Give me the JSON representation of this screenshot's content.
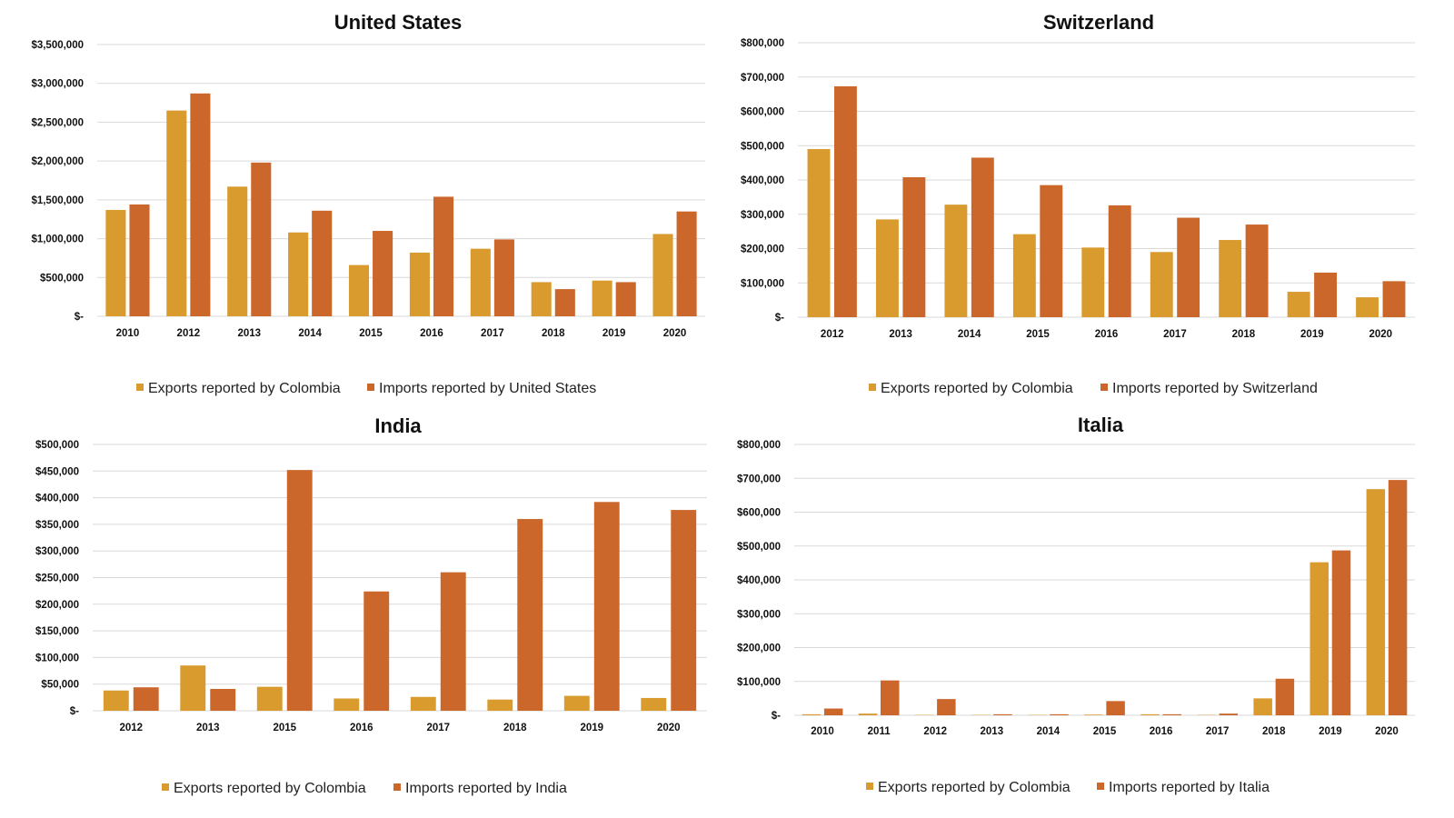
{
  "colors": {
    "exports": "#D99A2E",
    "imports": "#CC672C"
  },
  "chart_data": [
    {
      "type": "bar",
      "title": "United States",
      "categories": [
        "2010",
        "2012",
        "2013",
        "2014",
        "2015",
        "2016",
        "2017",
        "2018",
        "2019",
        "2020"
      ],
      "series": [
        {
          "name": "Exports reported by Colombia",
          "values": [
            1370000,
            2650000,
            1670000,
            1080000,
            660000,
            820000,
            870000,
            440000,
            460000,
            1060000
          ]
        },
        {
          "name": "Imports reported by United States",
          "values": [
            1440000,
            2870000,
            1980000,
            1360000,
            1100000,
            1540000,
            990000,
            350000,
            440000,
            1350000
          ]
        }
      ],
      "ylim": [
        0,
        3500000
      ],
      "yticks": [
        0,
        500000,
        1000000,
        1500000,
        2000000,
        2500000,
        3000000,
        3500000
      ],
      "ytick_labels": [
        "$-",
        "$500,000",
        "$1,000,000",
        "$1,500,000",
        "$2,000,000",
        "$2,500,000",
        "$3,000,000",
        "$3,500,000"
      ],
      "grid": true,
      "legend": "bottom"
    },
    {
      "type": "bar",
      "title": "Switzerland",
      "categories": [
        "2012",
        "2013",
        "2014",
        "2015",
        "2016",
        "2017",
        "2018",
        "2019",
        "2020"
      ],
      "series": [
        {
          "name": "Exports reported by Colombia",
          "values": [
            490000,
            285000,
            328000,
            242000,
            203000,
            190000,
            225000,
            74000,
            58000
          ]
        },
        {
          "name": "Imports reported by Switzerland",
          "values": [
            673000,
            408000,
            465000,
            385000,
            326000,
            290000,
            270000,
            130000,
            105000
          ]
        }
      ],
      "ylim": [
        0,
        800000
      ],
      "yticks": [
        0,
        100000,
        200000,
        300000,
        400000,
        500000,
        600000,
        700000,
        800000
      ],
      "ytick_labels": [
        "$-",
        "$100,000",
        "$200,000",
        "$300,000",
        "$400,000",
        "$500,000",
        "$600,000",
        "$700,000",
        "$800,000"
      ],
      "grid": true,
      "legend": "bottom"
    },
    {
      "type": "bar",
      "title": "India",
      "categories": [
        "2012",
        "2013",
        "2015",
        "2016",
        "2017",
        "2018",
        "2019",
        "2020"
      ],
      "series": [
        {
          "name": "Exports reported by Colombia",
          "values": [
            38000,
            85000,
            45000,
            23000,
            26000,
            21000,
            28000,
            24000
          ]
        },
        {
          "name": "Imports reported by India",
          "values": [
            44000,
            41000,
            452000,
            224000,
            260000,
            360000,
            392000,
            377000
          ]
        }
      ],
      "ylim": [
        0,
        500000
      ],
      "yticks": [
        0,
        50000,
        100000,
        150000,
        200000,
        250000,
        300000,
        350000,
        400000,
        450000,
        500000
      ],
      "ytick_labels": [
        "$-",
        "$50,000",
        "$100,000",
        "$150,000",
        "$200,000",
        "$250,000",
        "$300,000",
        "$350,000",
        "$400,000",
        "$450,000",
        "$500,000"
      ],
      "grid": true,
      "legend": "bottom"
    },
    {
      "type": "bar",
      "title": "Italia",
      "categories": [
        "2010",
        "2011",
        "2012",
        "2013",
        "2014",
        "2015",
        "2016",
        "2017",
        "2018",
        "2019",
        "2020"
      ],
      "series": [
        {
          "name": "Exports reported by Colombia",
          "values": [
            3000,
            5000,
            1000,
            1000,
            1000,
            2000,
            3000,
            1000,
            50000,
            452000,
            668000
          ]
        },
        {
          "name": "Imports reported by Italia",
          "values": [
            20000,
            103000,
            48000,
            3000,
            3000,
            42000,
            3000,
            5000,
            108000,
            487000,
            695000
          ]
        }
      ],
      "ylim": [
        0,
        800000
      ],
      "yticks": [
        0,
        100000,
        200000,
        300000,
        400000,
        500000,
        600000,
        700000,
        800000
      ],
      "ytick_labels": [
        "$-",
        "$100,000",
        "$200,000",
        "$300,000",
        "$400,000",
        "$500,000",
        "$600,000",
        "$700,000",
        "$800,000"
      ],
      "grid": true,
      "legend": "bottom"
    }
  ]
}
